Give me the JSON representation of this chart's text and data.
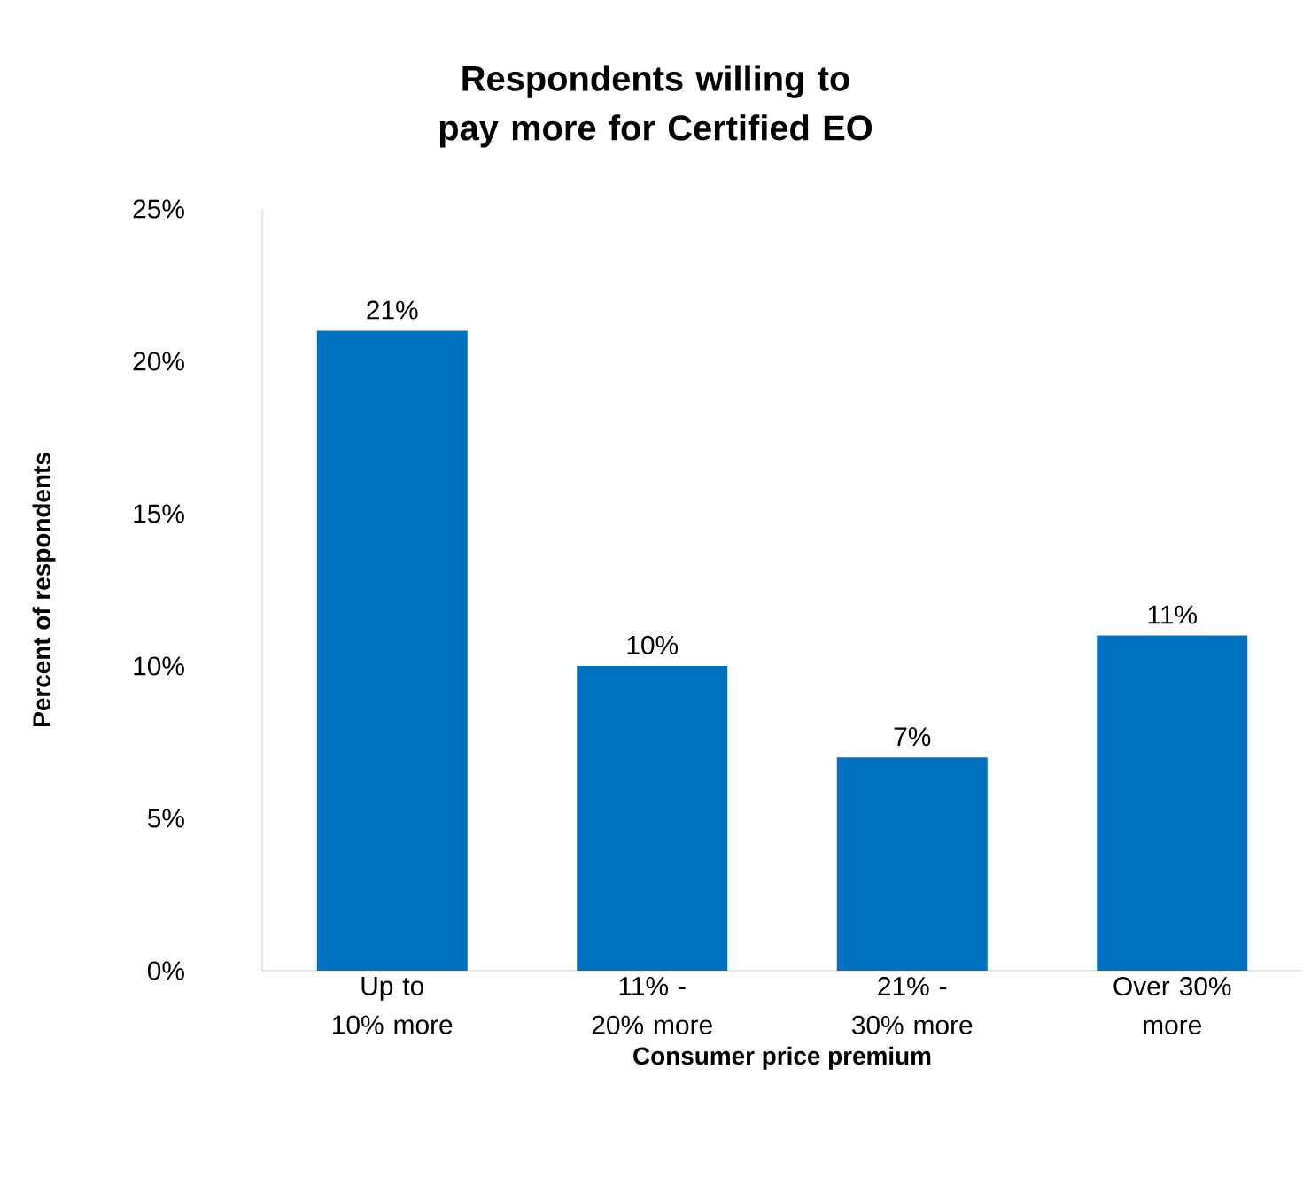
{
  "chart_data": {
    "type": "bar",
    "title": "Respondents willing to pay more for Certified  EO",
    "xlabel": "Consumer price premium",
    "ylabel": "Percent of respondents",
    "categories": [
      "Up to 10% more",
      "11% - 20% more",
      "21% - 30% more",
      "Over 30% more"
    ],
    "values": [
      21,
      10,
      7,
      11
    ],
    "value_labels": [
      "21%",
      "10%",
      "7%",
      "11%"
    ],
    "color": "#0070c0",
    "ylim": [
      0,
      25
    ],
    "yticks": [
      {
        "value": 0,
        "label": "0%"
      },
      {
        "value": 5,
        "label": "5%"
      },
      {
        "value": 10,
        "label": "10%"
      },
      {
        "value": 15,
        "label": "15%"
      },
      {
        "value": 20,
        "label": "20%"
      },
      {
        "value": 25,
        "label": "25%"
      }
    ],
    "grid": false
  }
}
